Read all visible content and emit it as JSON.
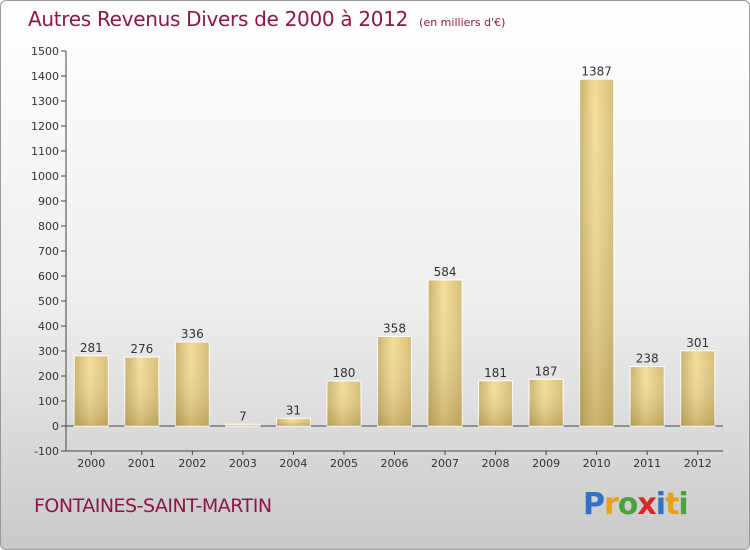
{
  "header": {
    "title": "Autres Revenus Divers de 2000 à 2012",
    "subtitle": "(en milliers d'€)"
  },
  "footer": {
    "town": "FONTAINES-SAINT-MARTIN"
  },
  "logo": {
    "letters": [
      "P",
      "r",
      "o",
      "x",
      "i",
      "t",
      "i"
    ],
    "colors": [
      "#2f73c9",
      "#e8a21a",
      "#4aa33e",
      "#d42a2a",
      "#2f73c9",
      "#e8a21a",
      "#4aa33e"
    ]
  },
  "chart_data": {
    "type": "bar",
    "title": "Autres Revenus Divers de 2000 à 2012",
    "subtitle": "(en milliers d'€)",
    "xlabel": "",
    "ylabel": "",
    "categories": [
      "2000",
      "2001",
      "2002",
      "2003",
      "2004",
      "2005",
      "2006",
      "2007",
      "2008",
      "2009",
      "2010",
      "2011",
      "2012"
    ],
    "values": [
      281,
      276,
      336,
      7,
      31,
      180,
      358,
      584,
      181,
      187,
      1387,
      238,
      301
    ],
    "ylim": [
      -100,
      1500
    ],
    "yticks": [
      "-100",
      "0",
      "100",
      "200",
      "300",
      "400",
      "500",
      "600",
      "700",
      "800",
      "900",
      "1000",
      "1100",
      "1200",
      "1300",
      "1400",
      "1500"
    ],
    "grid": false,
    "legend": "none",
    "bar_color": "#e3c97f"
  }
}
